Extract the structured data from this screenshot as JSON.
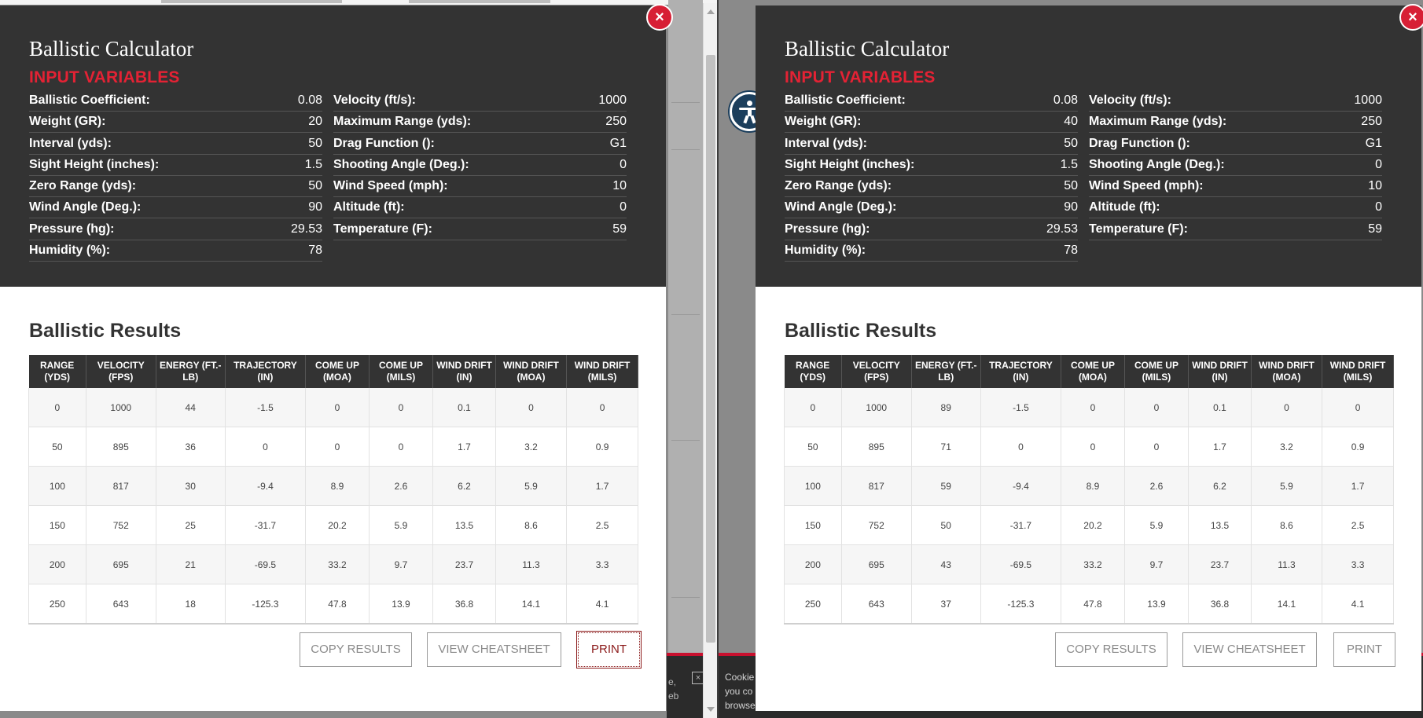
{
  "left": {
    "close_label": "×",
    "title": "Ballistic Calculator",
    "subtitle": "INPUT VARIABLES",
    "inputs": [
      [
        {
          "label": "Ballistic Coefficient:",
          "value": "0.08"
        },
        {
          "label": "Velocity (ft/s):",
          "value": "1000"
        }
      ],
      [
        {
          "label": "Weight (GR):",
          "value": "20"
        },
        {
          "label": "Maximum Range (yds):",
          "value": "250"
        }
      ],
      [
        {
          "label": "Interval (yds):",
          "value": "50"
        },
        {
          "label": "Drag Function ():",
          "value": "G1"
        }
      ],
      [
        {
          "label": "Sight Height (inches):",
          "value": "1.5"
        },
        {
          "label": "Shooting Angle (Deg.):",
          "value": "0"
        }
      ],
      [
        {
          "label": "Zero Range (yds):",
          "value": "50"
        },
        {
          "label": "Wind Speed (mph):",
          "value": "10"
        }
      ],
      [
        {
          "label": "Wind Angle (Deg.):",
          "value": "90"
        },
        {
          "label": "Altitude (ft):",
          "value": "0"
        }
      ],
      [
        {
          "label": "Pressure (hg):",
          "value": "29.53"
        },
        {
          "label": "Temperature (F):",
          "value": "59"
        }
      ],
      [
        {
          "label": "Humidity (%):",
          "value": "78"
        },
        null
      ]
    ],
    "results_title": "Ballistic Results",
    "columns": [
      "RANGE (YDS)",
      "VELOCITY (FPS)",
      "ENERGY (FT.-LB)",
      "TRAJECTORY (IN)",
      "COME UP (MOA)",
      "COME UP (MILS)",
      "WIND DRIFT (IN)",
      "WIND DRIFT (MOA)",
      "WIND DRIFT (MILS)"
    ],
    "rows": [
      [
        "0",
        "1000",
        "44",
        "-1.5",
        "0",
        "0",
        "0.1",
        "0",
        "0"
      ],
      [
        "50",
        "895",
        "36",
        "0",
        "0",
        "0",
        "1.7",
        "3.2",
        "0.9"
      ],
      [
        "100",
        "817",
        "30",
        "-9.4",
        "8.9",
        "2.6",
        "6.2",
        "5.9",
        "1.7"
      ],
      [
        "150",
        "752",
        "25",
        "-31.7",
        "20.2",
        "5.9",
        "13.5",
        "8.6",
        "2.5"
      ],
      [
        "200",
        "695",
        "21",
        "-69.5",
        "33.2",
        "9.7",
        "23.7",
        "11.3",
        "3.3"
      ],
      [
        "250",
        "643",
        "18",
        "-125.3",
        "47.8",
        "13.9",
        "36.8",
        "14.1",
        "4.1"
      ]
    ],
    "buttons": {
      "copy": "COPY RESULTS",
      "cheatsheet": "VIEW CHEATSHEET",
      "print": "PRINT"
    },
    "cookie_fragment": "e,\neb",
    "cookie_close": "×"
  },
  "right": {
    "close_label": "×",
    "title": "Ballistic Calculator",
    "subtitle": "INPUT VARIABLES",
    "inputs": [
      [
        {
          "label": "Ballistic Coefficient:",
          "value": "0.08"
        },
        {
          "label": "Velocity (ft/s):",
          "value": "1000"
        }
      ],
      [
        {
          "label": "Weight (GR):",
          "value": "40"
        },
        {
          "label": "Maximum Range (yds):",
          "value": "250"
        }
      ],
      [
        {
          "label": "Interval (yds):",
          "value": "50"
        },
        {
          "label": "Drag Function ():",
          "value": "G1"
        }
      ],
      [
        {
          "label": "Sight Height (inches):",
          "value": "1.5"
        },
        {
          "label": "Shooting Angle (Deg.):",
          "value": "0"
        }
      ],
      [
        {
          "label": "Zero Range (yds):",
          "value": "50"
        },
        {
          "label": "Wind Speed (mph):",
          "value": "10"
        }
      ],
      [
        {
          "label": "Wind Angle (Deg.):",
          "value": "90"
        },
        {
          "label": "Altitude (ft):",
          "value": "0"
        }
      ],
      [
        {
          "label": "Pressure (hg):",
          "value": "29.53"
        },
        {
          "label": "Temperature (F):",
          "value": "59"
        }
      ],
      [
        {
          "label": "Humidity (%):",
          "value": "78"
        },
        null
      ]
    ],
    "results_title": "Ballistic Results",
    "columns": [
      "RANGE (YDS)",
      "VELOCITY (FPS)",
      "ENERGY (FT.-LB)",
      "TRAJECTORY (IN)",
      "COME UP (MOA)",
      "COME UP (MILS)",
      "WIND DRIFT (IN)",
      "WIND DRIFT (MOA)",
      "WIND DRIFT (MILS)"
    ],
    "rows": [
      [
        "0",
        "1000",
        "89",
        "-1.5",
        "0",
        "0",
        "0.1",
        "0",
        "0"
      ],
      [
        "50",
        "895",
        "71",
        "0",
        "0",
        "0",
        "1.7",
        "3.2",
        "0.9"
      ],
      [
        "100",
        "817",
        "59",
        "-9.4",
        "8.9",
        "2.6",
        "6.2",
        "5.9",
        "1.7"
      ],
      [
        "150",
        "752",
        "50",
        "-31.7",
        "20.2",
        "5.9",
        "13.5",
        "8.6",
        "2.5"
      ],
      [
        "200",
        "695",
        "43",
        "-69.5",
        "33.2",
        "9.7",
        "23.7",
        "11.3",
        "3.3"
      ],
      [
        "250",
        "643",
        "37",
        "-125.3",
        "47.8",
        "13.9",
        "36.8",
        "14.1",
        "4.1"
      ]
    ],
    "buttons": {
      "copy": "COPY RESULTS",
      "cheatsheet": "VIEW CHEATSHEET",
      "print": "PRINT"
    },
    "cookie_fragment": "Cookie\nyou co\nbrowse"
  },
  "colors": {
    "header_bg": "#333333",
    "accent_red": "#e42234",
    "close_red": "#d71f35",
    "a11y_blue": "#1b3e5c"
  },
  "icons": {
    "close": "close-icon",
    "accessibility": "accessibility-icon"
  }
}
